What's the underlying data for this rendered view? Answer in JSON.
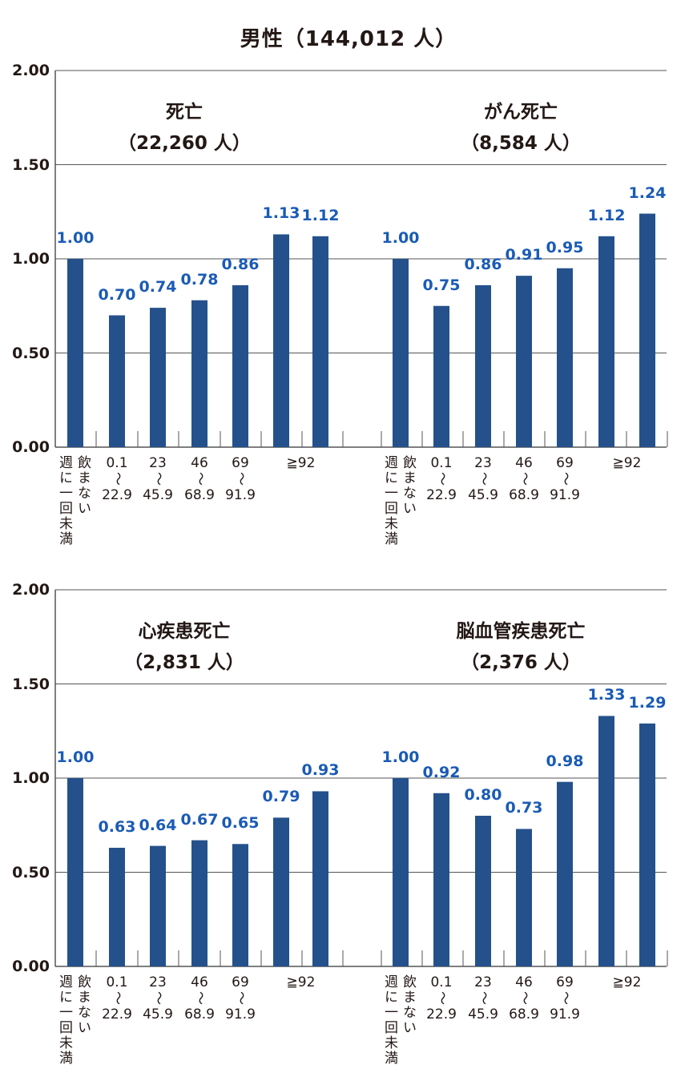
{
  "title": "男性（144,012 人）",
  "colors": {
    "bar": "#24518c",
    "value_label": "#1a5bb5",
    "axis": "#555555"
  },
  "chart_data": [
    {
      "type": "bar",
      "panel": "top",
      "title": "死亡",
      "subtitle": "（22,260 人）",
      "ylim": [
        0,
        2
      ],
      "yticks": [
        "0.00",
        "0.50",
        "1.00",
        "1.50",
        "2.00"
      ],
      "grid": true,
      "values": [
        1.0,
        0.7,
        0.74,
        0.78,
        0.86,
        1.13,
        1.12
      ],
      "value_labels": [
        "1.00",
        "0.70",
        "0.74",
        "0.78",
        "0.86",
        "1.13",
        "1.12"
      ]
    },
    {
      "type": "bar",
      "panel": "top",
      "title": "がん死亡",
      "subtitle": "（8,584 人）",
      "ylim": [
        0,
        2
      ],
      "grid": true,
      "values": [
        1.0,
        0.75,
        0.86,
        0.91,
        0.95,
        1.12,
        1.24
      ],
      "value_labels": [
        "1.00",
        "0.75",
        "0.86",
        "0.91",
        "0.95",
        "1.12",
        "1.24"
      ]
    },
    {
      "type": "bar",
      "panel": "bottom",
      "title": "心疾患死亡",
      "subtitle": "（2,831 人）",
      "ylim": [
        0,
        2
      ],
      "yticks": [
        "0.00",
        "0.50",
        "1.00",
        "1.50",
        "2.00"
      ],
      "grid": true,
      "values": [
        1.0,
        0.63,
        0.64,
        0.67,
        0.65,
        0.79,
        0.93
      ],
      "value_labels": [
        "1.00",
        "0.63",
        "0.64",
        "0.67",
        "0.65",
        "0.79",
        "0.93"
      ]
    },
    {
      "type": "bar",
      "panel": "bottom",
      "title": "脳血管疾患死亡",
      "subtitle": "（2,376 人）",
      "ylim": [
        0,
        2
      ],
      "grid": true,
      "values": [
        1.0,
        0.92,
        0.8,
        0.73,
        0.98,
        1.33,
        1.29
      ],
      "value_labels": [
        "1.00",
        "0.92",
        "0.80",
        "0.73",
        "0.98",
        "1.33",
        "1.29"
      ]
    }
  ],
  "category_labels": {
    "vertical": [
      "週に一回未満",
      "飲まない"
    ],
    "ranges": [
      {
        "from": "0.1",
        "sep": "〜",
        "to": "22.9"
      },
      {
        "from": "23",
        "sep": "〜",
        "to": "45.9"
      },
      {
        "from": "46",
        "sep": "〜",
        "to": "68.9"
      },
      {
        "from": "69",
        "sep": "〜",
        "to": "91.9"
      }
    ],
    "last": "≧92"
  }
}
